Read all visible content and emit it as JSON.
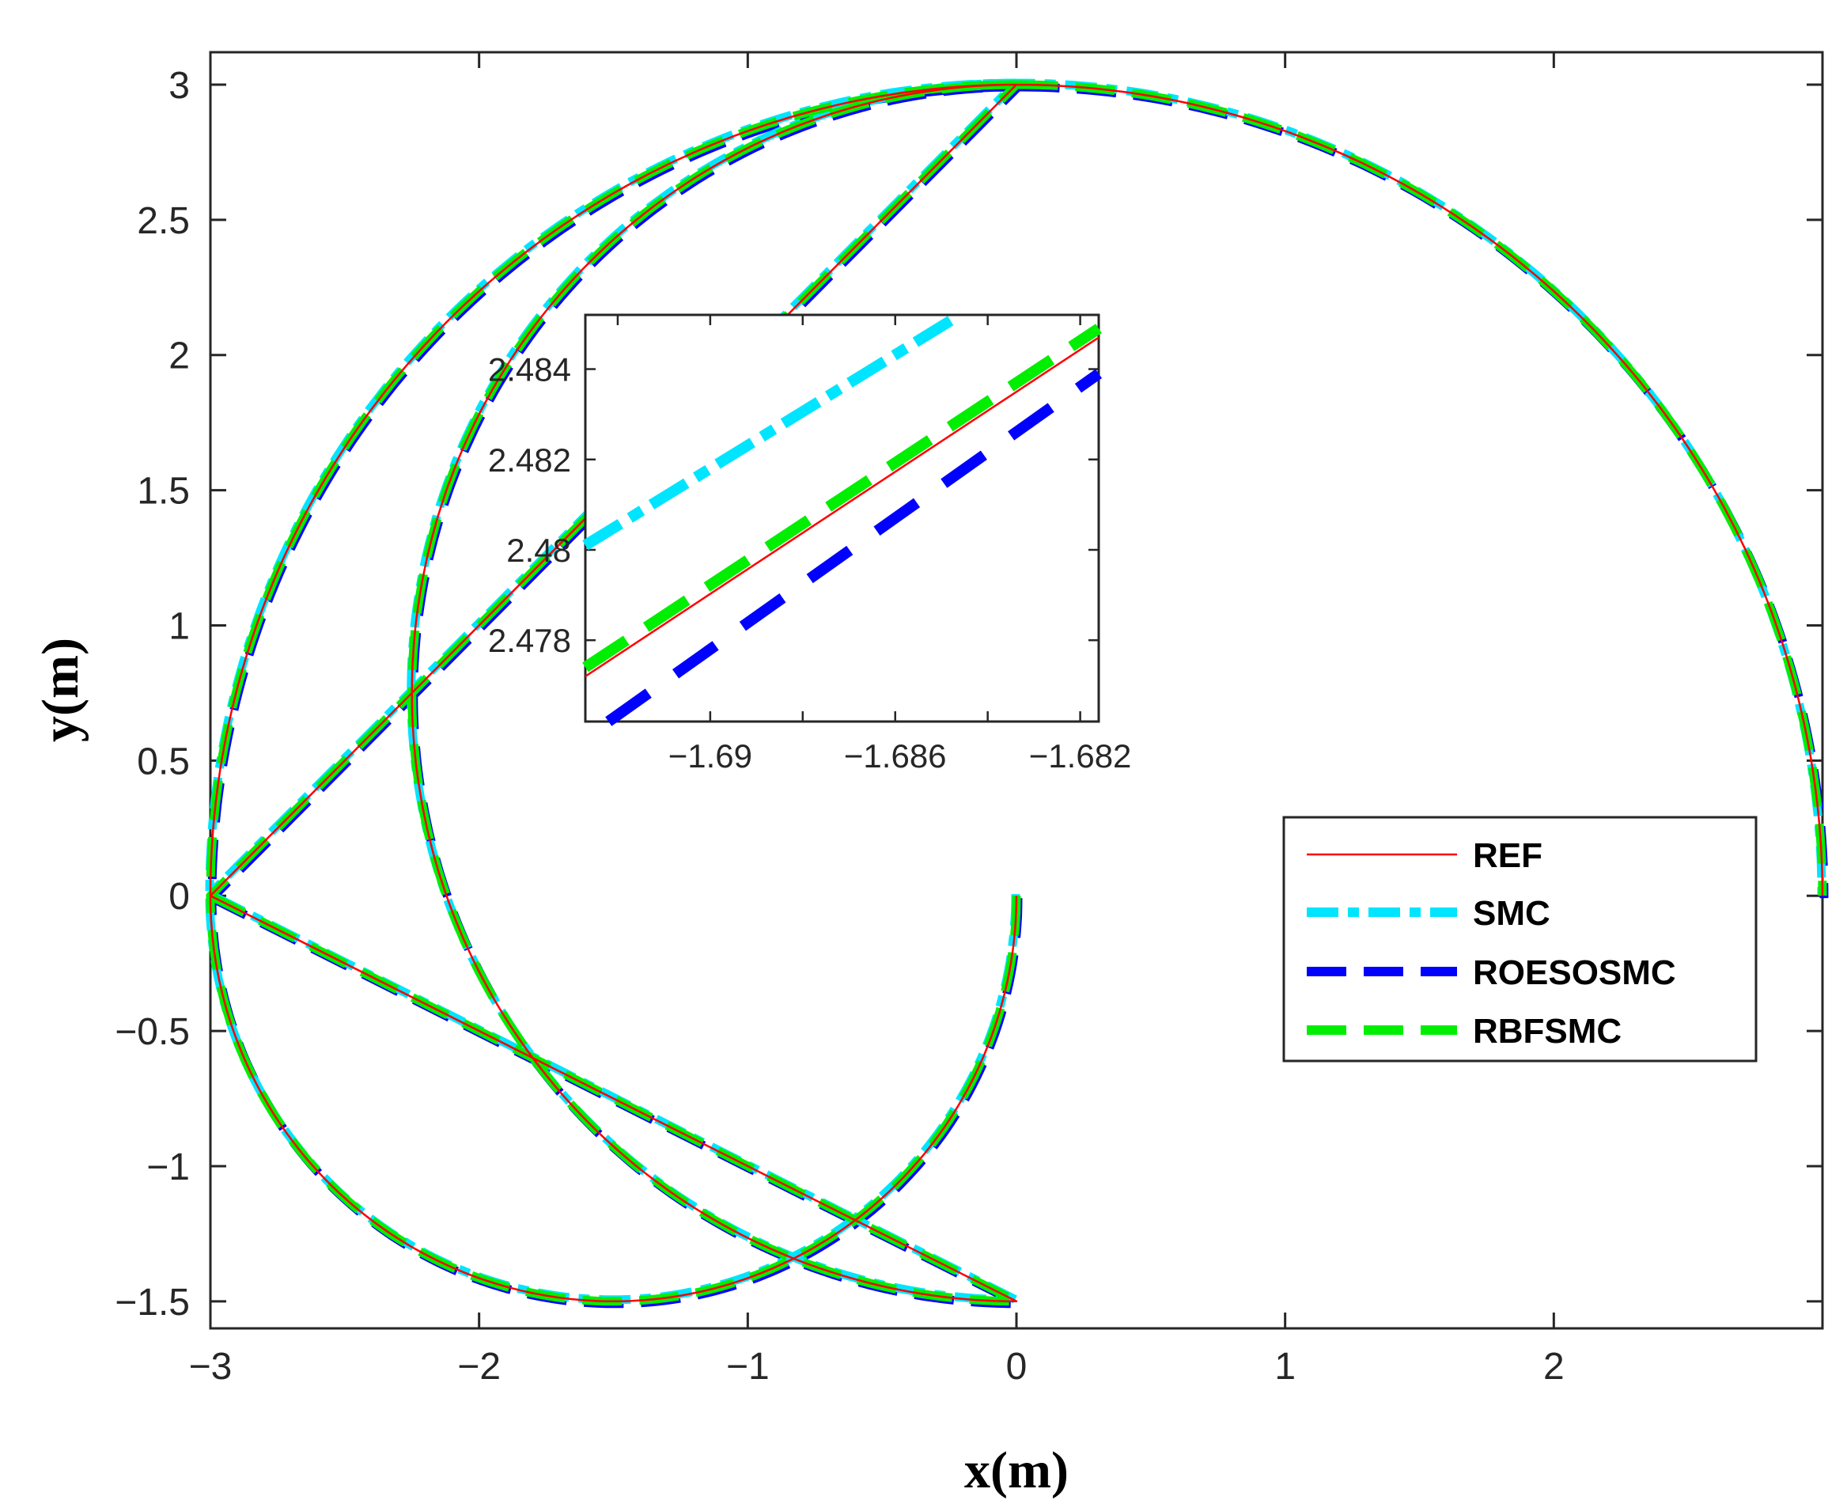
{
  "chart_data": {
    "type": "line",
    "title": "",
    "xlabel": "x(m)",
    "ylabel": "y(m)",
    "xlim": [
      -3,
      3
    ],
    "ylim": [
      -1.6,
      3.12
    ],
    "xticks": [
      -3,
      -2,
      -1,
      0,
      1,
      2
    ],
    "xtick_labels": [
      "−3",
      "−2",
      "−1",
      "0",
      "1",
      "2"
    ],
    "yticks": [
      -1.5,
      -1,
      -0.5,
      0,
      0.5,
      1,
      1.5,
      2,
      2.5,
      3
    ],
    "ytick_labels": [
      "−1.5",
      "−1",
      "−0.5",
      "0",
      "0.5",
      "1",
      "1.5",
      "2",
      "2.5",
      "3"
    ],
    "grid": false,
    "legend_position": "center-right",
    "trajectory": {
      "description": "spiral path starting at origin, radius growing from 1.5 to 3 over one turn",
      "upper_arc": {
        "center": [
          0,
          0
        ],
        "radius": 3,
        "from_deg": 0,
        "to_deg": 180
      },
      "left_arc": {
        "center": [
          0,
          0.75
        ],
        "radius": 2.25,
        "from_deg": 270,
        "to_deg": 90
      },
      "lower_arc": {
        "center": [
          -1.5,
          0
        ],
        "radius": 1.5,
        "from_deg": 180,
        "to_deg": 360
      }
    },
    "series": [
      {
        "name": "REF",
        "color": "#ff0000",
        "style": "solid"
      },
      {
        "name": "SMC",
        "color": "#00e5ff",
        "style": "dash-dot"
      },
      {
        "name": "ROESOSMC",
        "color": "#0000ff",
        "style": "dashed"
      },
      {
        "name": "RBFSMC",
        "color": "#00ee00",
        "style": "dashed"
      }
    ],
    "inset": {
      "xlim": [
        -1.6927,
        -1.6816
      ],
      "ylim": [
        2.4762,
        2.4852
      ],
      "xticks": [
        -1.69,
        -1.686,
        -1.682
      ],
      "xtick_labels": [
        "−1.69",
        "−1.686",
        "−1.682"
      ],
      "yticks": [
        2.478,
        2.48,
        2.482,
        2.484
      ],
      "ytick_labels": [
        "2.478",
        "2.48",
        "2.482",
        "2.484"
      ],
      "series": [
        {
          "name": "REF",
          "x": [
            -1.6927,
            -1.6816
          ],
          "y": [
            2.4772,
            2.4847
          ]
        },
        {
          "name": "SMC",
          "x": [
            -1.6927,
            -1.6846
          ],
          "y": [
            2.4801,
            2.4852
          ]
        },
        {
          "name": "ROESOSMC",
          "x": [
            -1.6922,
            -1.6816
          ],
          "y": [
            2.4762,
            2.4839
          ]
        },
        {
          "name": "RBFSMC",
          "x": [
            -1.6927,
            -1.6816
          ],
          "y": [
            2.4774,
            2.4849
          ]
        }
      ]
    }
  }
}
